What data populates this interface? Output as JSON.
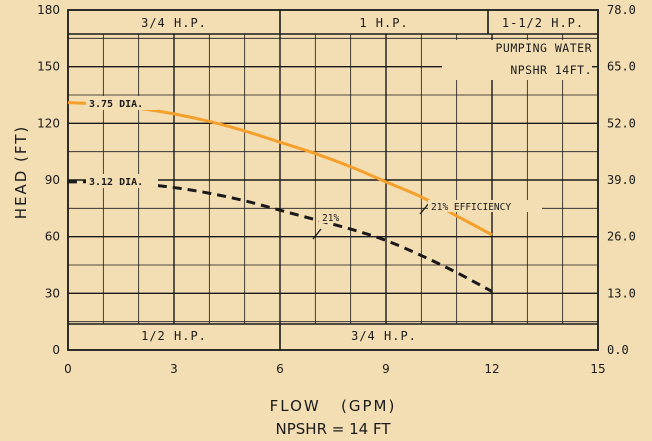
{
  "chart_data": {
    "type": "line",
    "xlabel": "FLOW   (GPM)",
    "ylabel": "HEAD   (FT)",
    "subtitle": "NPSHR = 14 FT",
    "xlim": [
      0,
      15
    ],
    "ylim": [
      0,
      180
    ],
    "x_ticks": [
      "0",
      "3",
      "6",
      "9",
      "12",
      "15"
    ],
    "y_ticks": [
      "0",
      "30",
      "60",
      "90",
      "120",
      "150",
      "180"
    ],
    "y2_ticks": [
      "0.0",
      "13.0",
      "26.0",
      "39.0",
      "52.0",
      "65.0",
      "78.0"
    ],
    "grid": true,
    "top_bands": [
      "3/4 H.P.",
      "1 H.P.",
      "1-1/2 H.P."
    ],
    "bottom_bands": [
      "1/2 H.P.",
      "3/4 H.P."
    ],
    "note_line1": "PUMPING WATER",
    "note_line2": "NPSHR 14FT.",
    "series": [
      {
        "name": "3.75 DIA.",
        "style": "solid",
        "color": "#f5a02a",
        "x": [
          0,
          1,
          2,
          3,
          4,
          5,
          6,
          7,
          8,
          9,
          10,
          11,
          12
        ],
        "y": [
          131,
          130,
          128,
          125,
          121,
          116,
          110,
          104,
          97,
          89,
          81,
          71,
          61
        ]
      },
      {
        "name": "3.12 DIA.",
        "style": "dashed",
        "color": "#1a1a1a",
        "x": [
          0,
          1,
          2,
          3,
          4,
          5,
          6,
          7,
          8,
          9,
          10,
          11,
          12
        ],
        "y": [
          89,
          89,
          88,
          86,
          83,
          79,
          74,
          69,
          64,
          58,
          50,
          41,
          31
        ]
      }
    ],
    "annotations": [
      {
        "text": "21% EFFICIENCY"
      },
      {
        "text": "21%"
      }
    ],
    "colors": {
      "background": "#f3ddb3",
      "ink": "#1a1a1a",
      "curve_375": "#f5a02a"
    }
  }
}
